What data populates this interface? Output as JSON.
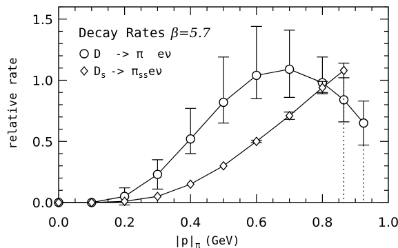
{
  "chart_data": {
    "type": "scatter",
    "title": "Decay Rates",
    "title_param": "β=5.7",
    "xlabel": "|p|",
    "xlabel_sub": "π",
    "xlabel_unit": "(GeV)",
    "ylabel": "relative rate",
    "xlim": [
      0.0,
      1.0
    ],
    "ylim": [
      0.0,
      1.6
    ],
    "xticks": [
      "0.0",
      "0.2",
      "0.4",
      "0.6",
      "0.8",
      "1.0"
    ],
    "yticks": [
      "0.0",
      "0.5",
      "1.0",
      "1.5"
    ],
    "xtick_values": [
      0.0,
      0.2,
      0.4,
      0.6,
      0.8,
      1.0
    ],
    "ytick_values": [
      0.0,
      0.5,
      1.0,
      1.5
    ],
    "grid": false,
    "legend_position": "top-left",
    "series": [
      {
        "marker": "circle",
        "label_main": "D  -> π  eν",
        "x": [
          0.0,
          0.1,
          0.2,
          0.3,
          0.4,
          0.5,
          0.6,
          0.7,
          0.8,
          0.865,
          0.925
        ],
        "y": [
          0.0,
          0.0,
          0.05,
          0.23,
          0.52,
          0.82,
          1.04,
          1.09,
          0.98,
          0.84,
          0.65
        ],
        "yerr_low": [
          0.0,
          0.0,
          0.07,
          0.12,
          0.12,
          0.17,
          0.19,
          0.23,
          0.08,
          0.18,
          0.18
        ],
        "yerr_high": [
          0.0,
          0.0,
          0.07,
          0.12,
          0.25,
          0.37,
          0.4,
          0.32,
          0.21,
          0.18,
          0.18
        ],
        "dotted_drop_at_x": 0.925
      },
      {
        "marker": "diamond",
        "label_main": "D",
        "label_sub": "s",
        "label_mid": "-> π",
        "label_sub2": "ss",
        "label_end": "eν",
        "x": [
          0.0,
          0.1,
          0.2,
          0.3,
          0.4,
          0.5,
          0.6,
          0.7,
          0.8,
          0.865
        ],
        "y": [
          0.0,
          0.0,
          0.01,
          0.05,
          0.15,
          0.3,
          0.5,
          0.71,
          0.94,
          1.08
        ],
        "yerr_low": [
          0.0,
          0.0,
          0.0,
          0.0,
          0.0,
          0.0,
          0.01,
          0.03,
          0.05,
          0.06
        ],
        "yerr_high": [
          0.0,
          0.0,
          0.0,
          0.0,
          0.0,
          0.0,
          0.01,
          0.03,
          0.05,
          0.06
        ],
        "dotted_drop_at_x": 0.865
      }
    ]
  }
}
